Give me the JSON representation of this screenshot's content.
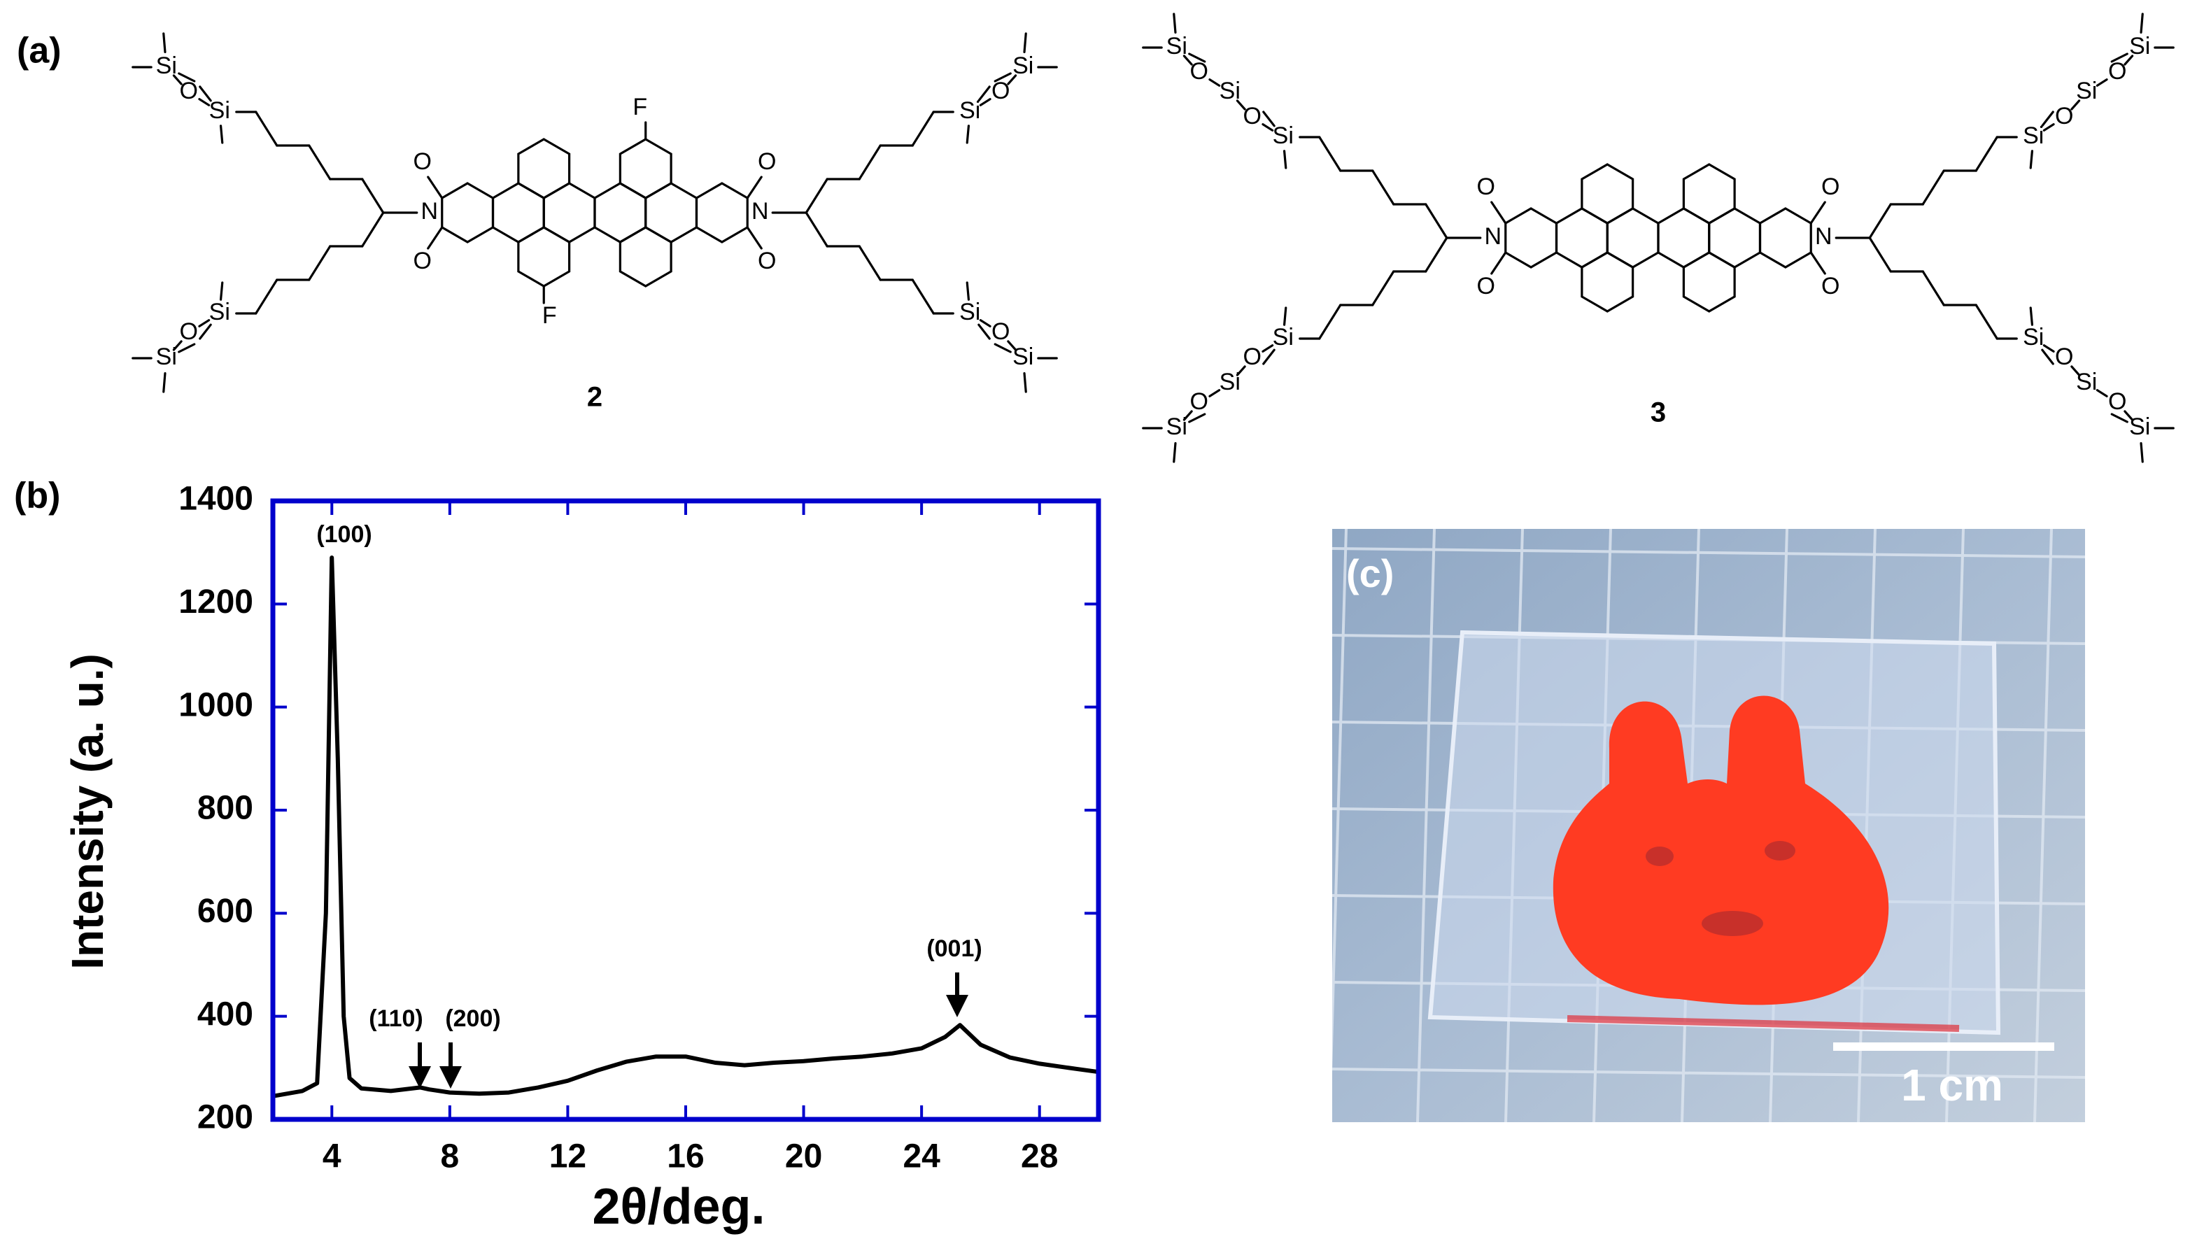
{
  "panel_a": {
    "label": "(a)",
    "atoms": [
      "Si",
      "O",
      "N",
      "F"
    ],
    "compounds": [
      "2",
      "3"
    ]
  },
  "chart_data": {
    "type": "line",
    "panel_label": "(b)",
    "xlabel": "2θ/deg.",
    "ylabel": "Intensity (a. u.)",
    "x": [
      2,
      3,
      3.5,
      3.8,
      4.0,
      4.2,
      4.4,
      4.6,
      5,
      6,
      7,
      7.3,
      8,
      9,
      10,
      11,
      12,
      13,
      14,
      15,
      16,
      17,
      18,
      19,
      20,
      21,
      22,
      23,
      24,
      24.8,
      25.3,
      26,
      27,
      28,
      29,
      30
    ],
    "values": [
      245,
      255,
      270,
      600,
      1290,
      900,
      400,
      280,
      260,
      255,
      262,
      258,
      252,
      250,
      252,
      262,
      275,
      295,
      312,
      322,
      322,
      310,
      305,
      310,
      313,
      318,
      322,
      328,
      338,
      360,
      383,
      345,
      320,
      308,
      300,
      292
    ],
    "color": "#000000",
    "frame_color": "#0000cc",
    "xlim": [
      2,
      30
    ],
    "ylim": [
      200,
      1400
    ],
    "xticks": [
      4,
      8,
      12,
      16,
      20,
      24,
      28
    ],
    "yticks": [
      200,
      400,
      600,
      800,
      1000,
      1200,
      1400
    ],
    "annotations": [
      "(100)",
      "(110)",
      "(200)",
      "(001)"
    ]
  },
  "panel_c": {
    "label": "(c)",
    "scale_bar": "1 cm"
  }
}
